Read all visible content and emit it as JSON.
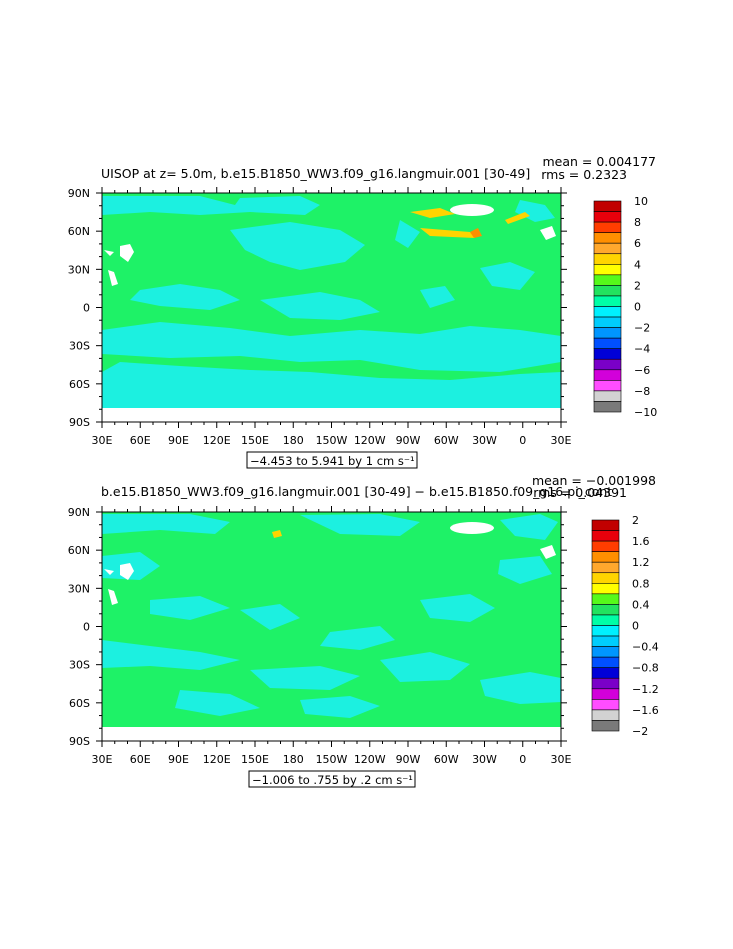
{
  "chart_data": [
    {
      "type": "heatmap",
      "title": "UISOP at z=    5.0m, b.e15.B1850_WW3.f09_g16.langmuir.001 [30-49]",
      "stats": [
        "mean = 0.004177",
        "rms = 0.2323"
      ],
      "subtitle": "−4.453 to 5.941 by 1 cm s⁻¹",
      "x_ticks": [
        "30E",
        "60E",
        "90E",
        "120E",
        "150E",
        "180",
        "150W",
        "120W",
        "90W",
        "60W",
        "30W",
        "0",
        "30E"
      ],
      "y_ticks": [
        "90N",
        "60N",
        "30N",
        "0",
        "30S",
        "60S",
        "90S"
      ],
      "colorbar": {
        "labels": [
          "10",
          "8",
          "6",
          "4",
          "2",
          "0",
          "−2",
          "−4",
          "−6",
          "−8",
          "−10"
        ],
        "colors": [
          "#c10000",
          "#e8000b",
          "#ff3d00",
          "#ff8f00",
          "#ffa82d",
          "#ffd400",
          "#ffff00",
          "#56f91b",
          "#22e35f",
          "#00fea6",
          "#00f0fe",
          "#00cdfd",
          "#0096ff",
          "#0050ff",
          "#0000d8",
          "#7a00c8",
          "#d200da",
          "#ff4dff",
          "#d2d2d2",
          "#7a7a7a"
        ],
        "unit": "cm s⁻¹"
      },
      "fields": {
        "background": "#1ef267",
        "negative_color": "#1cf0e0",
        "positive_color": "#ffd400",
        "high_color": "#ff8f00",
        "ice_color": "#ffffff"
      },
      "range": {
        "min": -4.453,
        "max": 5.941,
        "interval": 1
      }
    },
    {
      "type": "heatmap",
      "title": "b.e15.B1850_WW3.f09_g16.langmuir.001 [30-49] − b.e15.B1850.f09_g16.pi_cont",
      "stats": [
        "mean = −0.001998",
        "rms = 0.04391"
      ],
      "subtitle": "−1.006 to .755 by .2 cm s⁻¹",
      "x_ticks": [
        "30E",
        "60E",
        "90E",
        "120E",
        "150E",
        "180",
        "150W",
        "120W",
        "90W",
        "60W",
        "30W",
        "0",
        "30E"
      ],
      "y_ticks": [
        "90N",
        "60N",
        "30N",
        "0",
        "30S",
        "60S",
        "90S"
      ],
      "colorbar": {
        "labels": [
          "2",
          "1.6",
          "1.2",
          "0.8",
          "0.4",
          "0",
          "−0.4",
          "−0.8",
          "−1.2",
          "−1.6",
          "−2"
        ],
        "colors": [
          "#c10000",
          "#e8000b",
          "#ff3d00",
          "#ff8f00",
          "#ffa82d",
          "#ffd400",
          "#ffff00",
          "#56f91b",
          "#22e35f",
          "#00fea6",
          "#00f0fe",
          "#00cdfd",
          "#0096ff",
          "#0050ff",
          "#0000d8",
          "#7a00c8",
          "#d200da",
          "#ff4dff",
          "#d2d2d2",
          "#7a7a7a"
        ],
        "unit": "cm s⁻¹"
      },
      "fields": {
        "background": "#1ef267",
        "negative_color": "#1cf0e0",
        "positive_color": "#ffd400",
        "high_color": "#ff8f00",
        "ice_color": "#ffffff"
      },
      "range": {
        "min": -1.006,
        "max": 0.755,
        "interval": 0.2
      }
    }
  ]
}
